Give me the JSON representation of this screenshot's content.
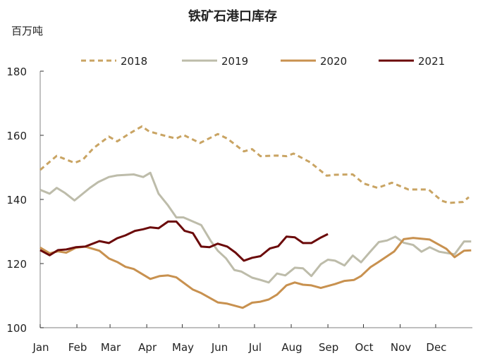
{
  "chart_data": {
    "type": "line",
    "title": "铁矿石港口库存",
    "ylabel": "百万吨",
    "xlabel": "",
    "ylim": [
      100,
      180
    ],
    "yticks": [
      100,
      120,
      140,
      160,
      180
    ],
    "xticks": [
      "Jan",
      "Feb",
      "Mar",
      "Apr",
      "May",
      "Jun",
      "Jul",
      "Aug",
      "Sep",
      "Oct",
      "Nov",
      "Dec"
    ],
    "grid": false,
    "legend_position": "top",
    "series": [
      {
        "name": "2018",
        "color": "#c9a463",
        "dash": true,
        "points": [
          [
            "01-01",
            149.2
          ],
          [
            "01-15",
            153.6
          ],
          [
            "01-30",
            151.4
          ],
          [
            "02-06",
            152.4
          ],
          [
            "02-15",
            156.0
          ],
          [
            "02-28",
            159.6
          ],
          [
            "03-07",
            158.1
          ],
          [
            "03-19",
            160.9
          ],
          [
            "03-28",
            162.8
          ],
          [
            "04-03",
            161.2
          ],
          [
            "04-18",
            159.7
          ],
          [
            "04-26",
            159.0
          ],
          [
            "05-02",
            160.1
          ],
          [
            "05-16",
            157.6
          ],
          [
            "05-31",
            160.4
          ],
          [
            "06-08",
            159.0
          ],
          [
            "06-22",
            155.0
          ],
          [
            "06-29",
            155.7
          ],
          [
            "07-06",
            153.5
          ],
          [
            "07-20",
            153.7
          ],
          [
            "07-28",
            153.5
          ],
          [
            "08-03",
            154.3
          ],
          [
            "08-17",
            151.6
          ],
          [
            "08-31",
            147.4
          ],
          [
            "09-07",
            147.7
          ],
          [
            "09-22",
            147.8
          ],
          [
            "10-01",
            145.0
          ],
          [
            "10-13",
            143.6
          ],
          [
            "10-25",
            145.2
          ],
          [
            "11-08",
            143.1
          ],
          [
            "11-25",
            143.1
          ],
          [
            "12-06",
            139.6
          ],
          [
            "12-12",
            138.9
          ],
          [
            "12-24",
            139.2
          ],
          [
            "12-29",
            140.7
          ]
        ]
      },
      {
        "name": "2019",
        "color": "#bdbcaa",
        "dash": false,
        "points": [
          [
            "01-01",
            143.0
          ],
          [
            "01-09",
            141.8
          ],
          [
            "01-15",
            143.6
          ],
          [
            "01-22",
            142.0
          ],
          [
            "01-30",
            139.7
          ],
          [
            "02-12",
            143.6
          ],
          [
            "02-19",
            145.4
          ],
          [
            "02-28",
            147.0
          ],
          [
            "03-07",
            147.5
          ],
          [
            "03-21",
            147.8
          ],
          [
            "03-29",
            147.0
          ],
          [
            "04-04",
            148.3
          ],
          [
            "04-11",
            141.8
          ],
          [
            "04-19",
            138.1
          ],
          [
            "04-26",
            134.4
          ],
          [
            "05-02",
            134.4
          ],
          [
            "05-17",
            132.0
          ],
          [
            "05-25",
            127.1
          ],
          [
            "05-31",
            124.0
          ],
          [
            "06-07",
            121.6
          ],
          [
            "06-14",
            118.0
          ],
          [
            "06-20",
            117.5
          ],
          [
            "06-29",
            115.6
          ],
          [
            "07-06",
            114.9
          ],
          [
            "07-13",
            114.1
          ],
          [
            "07-20",
            116.9
          ],
          [
            "07-27",
            116.3
          ],
          [
            "08-04",
            118.7
          ],
          [
            "08-11",
            118.5
          ],
          [
            "08-18",
            116.1
          ],
          [
            "08-26",
            119.8
          ],
          [
            "09-01",
            121.2
          ],
          [
            "09-07",
            120.9
          ],
          [
            "09-15",
            119.4
          ],
          [
            "09-22",
            122.5
          ],
          [
            "09-29",
            120.4
          ],
          [
            "10-06",
            123.4
          ],
          [
            "10-14",
            126.7
          ],
          [
            "10-21",
            127.2
          ],
          [
            "10-28",
            128.4
          ],
          [
            "11-04",
            126.5
          ],
          [
            "11-12",
            125.8
          ],
          [
            "11-19",
            123.7
          ],
          [
            "11-26",
            125.1
          ],
          [
            "12-04",
            123.7
          ],
          [
            "12-17",
            122.9
          ],
          [
            "12-25",
            126.9
          ],
          [
            "12-31",
            126.9
          ]
        ]
      },
      {
        "name": "2020",
        "color": "#c8914f",
        "dash": false,
        "points": [
          [
            "01-01",
            125.0
          ],
          [
            "01-09",
            123.2
          ],
          [
            "01-16",
            123.8
          ],
          [
            "01-23",
            123.4
          ],
          [
            "01-31",
            124.9
          ],
          [
            "02-08",
            125.3
          ],
          [
            "02-20",
            124.0
          ],
          [
            "02-28",
            121.6
          ],
          [
            "03-07",
            120.5
          ],
          [
            "03-14",
            119.0
          ],
          [
            "03-21",
            118.3
          ],
          [
            "04-04",
            115.2
          ],
          [
            "04-12",
            116.1
          ],
          [
            "04-19",
            116.3
          ],
          [
            "04-26",
            115.7
          ],
          [
            "05-10",
            111.9
          ],
          [
            "05-17",
            110.8
          ],
          [
            "05-31",
            107.9
          ],
          [
            "06-08",
            107.5
          ],
          [
            "06-21",
            106.2
          ],
          [
            "06-29",
            107.8
          ],
          [
            "07-06",
            108.1
          ],
          [
            "07-13",
            108.8
          ],
          [
            "07-20",
            110.3
          ],
          [
            "07-28",
            113.2
          ],
          [
            "08-04",
            114.1
          ],
          [
            "08-11",
            113.4
          ],
          [
            "08-18",
            113.2
          ],
          [
            "08-26",
            112.4
          ],
          [
            "09-07",
            113.6
          ],
          [
            "09-15",
            114.6
          ],
          [
            "09-23",
            114.9
          ],
          [
            "09-29",
            116.1
          ],
          [
            "10-07",
            118.9
          ],
          [
            "10-13",
            120.3
          ],
          [
            "10-27",
            123.8
          ],
          [
            "11-04",
            127.6
          ],
          [
            "11-12",
            128.0
          ],
          [
            "11-26",
            127.5
          ],
          [
            "12-10",
            124.6
          ],
          [
            "12-17",
            122.0
          ],
          [
            "12-25",
            124.0
          ],
          [
            "12-31",
            124.1
          ]
        ]
      },
      {
        "name": "2021",
        "color": "#6b0a0a",
        "dash": false,
        "points": [
          [
            "01-01",
            124.2
          ],
          [
            "01-09",
            122.6
          ],
          [
            "01-16",
            124.2
          ],
          [
            "01-23",
            124.4
          ],
          [
            "01-31",
            125.1
          ],
          [
            "02-08",
            125.3
          ],
          [
            "02-20",
            127.0
          ],
          [
            "02-28",
            126.4
          ],
          [
            "03-07",
            127.9
          ],
          [
            "03-14",
            128.8
          ],
          [
            "03-22",
            130.2
          ],
          [
            "03-29",
            130.7
          ],
          [
            "04-04",
            131.3
          ],
          [
            "04-11",
            131.0
          ],
          [
            "04-19",
            133.1
          ],
          [
            "04-26",
            133.1
          ],
          [
            "05-03",
            130.2
          ],
          [
            "05-10",
            129.5
          ],
          [
            "05-17",
            125.3
          ],
          [
            "05-24",
            125.1
          ],
          [
            "05-31",
            126.2
          ],
          [
            "06-08",
            125.3
          ],
          [
            "06-15",
            123.4
          ],
          [
            "06-22",
            120.9
          ],
          [
            "06-29",
            121.8
          ],
          [
            "07-06",
            122.3
          ],
          [
            "07-14",
            124.7
          ],
          [
            "07-21",
            125.4
          ],
          [
            "07-28",
            128.4
          ],
          [
            "08-04",
            128.2
          ],
          [
            "08-11",
            126.4
          ],
          [
            "08-18",
            126.4
          ],
          [
            "08-26",
            128.1
          ],
          [
            "09-01",
            129.2
          ]
        ]
      }
    ]
  }
}
